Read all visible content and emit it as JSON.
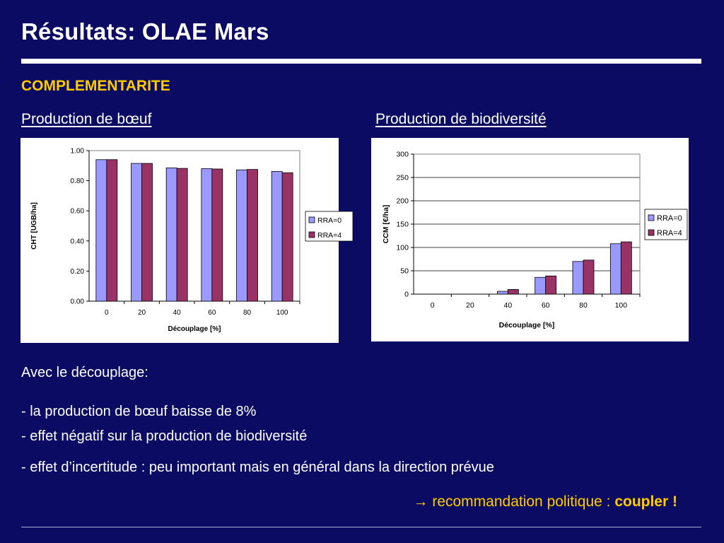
{
  "slide": {
    "title": "Résultats: OLAE Mars",
    "subtitle": "COMPLEMENTARITE",
    "left_heading": "Production de bœuf",
    "right_heading": "Production de biodiversité",
    "intro": "Avec le découplage:",
    "bullets": [
      "- la production de bœuf baisse de 8%",
      "- effet négatif  sur la production de biodiversité",
      "- effet d’incertitude : peu important mais en général dans la direction prévue"
    ],
    "recommendation_prefix": "recommandation politique : ",
    "recommendation_strong": "coupler !",
    "arrow_icon": "→"
  },
  "colors": {
    "background": "#0b0b64",
    "accent": "#ffcc00",
    "series_rra0": "#9999ff",
    "series_rra4": "#993366"
  },
  "chart_data": [
    {
      "type": "bar",
      "categories": [
        "0",
        "20",
        "40",
        "60",
        "80",
        "100"
      ],
      "series": [
        {
          "name": "RRA=0",
          "values": [
            0.94,
            0.915,
            0.885,
            0.88,
            0.872,
            0.862
          ]
        },
        {
          "name": "RRA=4",
          "values": [
            0.94,
            0.915,
            0.882,
            0.878,
            0.875,
            0.853
          ]
        }
      ],
      "xlabel": "Découplage [%]",
      "ylabel": "CHT [UGB/ha]",
      "ylim": [
        0,
        1.0
      ],
      "yticks": [
        "0.00",
        "0.20",
        "0.40",
        "0.60",
        "0.80",
        "1.00"
      ],
      "legend": "right",
      "grid": false
    },
    {
      "type": "bar",
      "categories": [
        "0",
        "20",
        "40",
        "60",
        "80",
        "100"
      ],
      "series": [
        {
          "name": "RRA=0",
          "values": [
            0,
            0,
            6,
            36,
            70,
            108
          ]
        },
        {
          "name": "RRA=4",
          "values": [
            0,
            0,
            10,
            39,
            73,
            112
          ]
        }
      ],
      "xlabel": "Découplage [%]",
      "ylabel": "CCM [€/ha]",
      "ylim": [
        0,
        300
      ],
      "yticks": [
        "0",
        "50",
        "100",
        "150",
        "200",
        "250",
        "300"
      ],
      "legend": "right",
      "grid": true
    }
  ]
}
